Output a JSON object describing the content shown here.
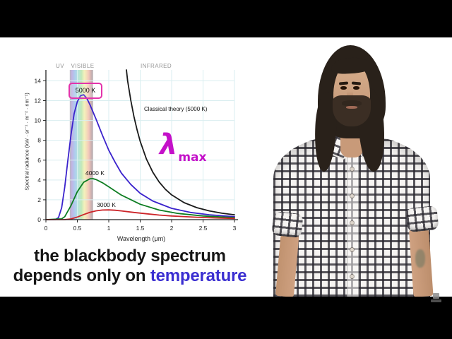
{
  "caption": {
    "line1": "the blackbody spectrum",
    "line2_prefix": "depends only on ",
    "line2_highlight": "temperature",
    "highlight_color": "#3b2fd1"
  },
  "presenter": {
    "appearance": "man with long dark hair and full beard wearing a black-and-white plaid shirt"
  },
  "chart_data": {
    "type": "line",
    "title": "",
    "xlabel": "Wavelength (μm)",
    "ylabel": "Spectral radiance (kW · sr⁻¹ · m⁻² · nm⁻¹)",
    "xlim": [
      0,
      3
    ],
    "ylim": [
      0,
      15.1
    ],
    "xticks": [
      0,
      0.5,
      1,
      1.5,
      2,
      2.5,
      3
    ],
    "yticks": [
      0,
      2,
      4,
      6,
      8,
      10,
      12,
      14
    ],
    "grid": true,
    "grid_color": "#d9eef0",
    "legend_position": "none",
    "visible_band_um": [
      0.38,
      0.75
    ],
    "region_labels": [
      {
        "text": "UV"
      },
      {
        "text": "VISIBLE"
      },
      {
        "text": "INFRARED"
      }
    ],
    "series": [
      {
        "name": "5000 K",
        "color": "#3a22cc",
        "points": [
          [
            0,
            0
          ],
          [
            0.15,
            0.01
          ],
          [
            0.2,
            0.21
          ],
          [
            0.25,
            1.2
          ],
          [
            0.3,
            3.3
          ],
          [
            0.35,
            6.0
          ],
          [
            0.4,
            8.6
          ],
          [
            0.45,
            10.7
          ],
          [
            0.5,
            11.9
          ],
          [
            0.55,
            12.5
          ],
          [
            0.6,
            12.6
          ],
          [
            0.65,
            12.25
          ],
          [
            0.7,
            11.6
          ],
          [
            0.8,
            10.1
          ],
          [
            0.9,
            8.5
          ],
          [
            1,
            7.0
          ],
          [
            1.1,
            5.8
          ],
          [
            1.2,
            4.7
          ],
          [
            1.35,
            3.55
          ],
          [
            1.5,
            2.66
          ],
          [
            1.7,
            1.88
          ],
          [
            2,
            1.14
          ],
          [
            2.3,
            0.73
          ],
          [
            2.6,
            0.49
          ],
          [
            3,
            0.3
          ]
        ]
      },
      {
        "name": "4000 K",
        "color": "#0e7d22",
        "points": [
          [
            0,
            0
          ],
          [
            0.25,
            0.08
          ],
          [
            0.3,
            0.3
          ],
          [
            0.4,
            1.43
          ],
          [
            0.5,
            2.82
          ],
          [
            0.6,
            3.77
          ],
          [
            0.7,
            4.12
          ],
          [
            0.75,
            4.13
          ],
          [
            0.8,
            4.04
          ],
          [
            0.9,
            3.72
          ],
          [
            1,
            3.31
          ],
          [
            1.2,
            2.48
          ],
          [
            1.5,
            1.55
          ],
          [
            1.8,
            0.97
          ],
          [
            2.1,
            0.63
          ],
          [
            2.5,
            0.37
          ],
          [
            3,
            0.21
          ]
        ]
      },
      {
        "name": "3000 K",
        "color": "#cc2429",
        "points": [
          [
            0,
            0
          ],
          [
            0.3,
            0.01
          ],
          [
            0.4,
            0.07
          ],
          [
            0.5,
            0.26
          ],
          [
            0.6,
            0.51
          ],
          [
            0.7,
            0.74
          ],
          [
            0.8,
            0.89
          ],
          [
            0.9,
            0.97
          ],
          [
            1,
            0.98
          ],
          [
            1.1,
            0.95
          ],
          [
            1.2,
            0.88
          ],
          [
            1.4,
            0.73
          ],
          [
            1.6,
            0.59
          ],
          [
            1.8,
            0.46
          ],
          [
            2,
            0.37
          ],
          [
            2.4,
            0.24
          ],
          [
            2.7,
            0.17
          ],
          [
            3,
            0.12
          ]
        ]
      },
      {
        "name": "Classical theory (5000 K)",
        "color": "#1a1a1a",
        "points": [
          [
            1.281,
            15.1
          ],
          [
            1.3,
            14
          ],
          [
            1.35,
            12.04
          ],
          [
            1.4,
            10.41
          ],
          [
            1.45,
            9.05
          ],
          [
            1.5,
            7.9
          ],
          [
            1.6,
            6.1
          ],
          [
            1.7,
            4.79
          ],
          [
            1.8,
            3.81
          ],
          [
            1.9,
            3.07
          ],
          [
            2,
            2.5
          ],
          [
            2.2,
            1.71
          ],
          [
            2.4,
            1.21
          ],
          [
            2.6,
            0.88
          ],
          [
            2.8,
            0.65
          ],
          [
            3,
            0.49
          ]
        ]
      }
    ],
    "annotations": {
      "peak_box": "5000 K",
      "peak_box_color": "#e334ab",
      "classical": "Classical theory (5000 K)",
      "t4000": "4000 K",
      "t3000": "3000 K",
      "lambda": "λ",
      "lambda_sub": "max",
      "lambda_color": "#c411c9"
    }
  }
}
